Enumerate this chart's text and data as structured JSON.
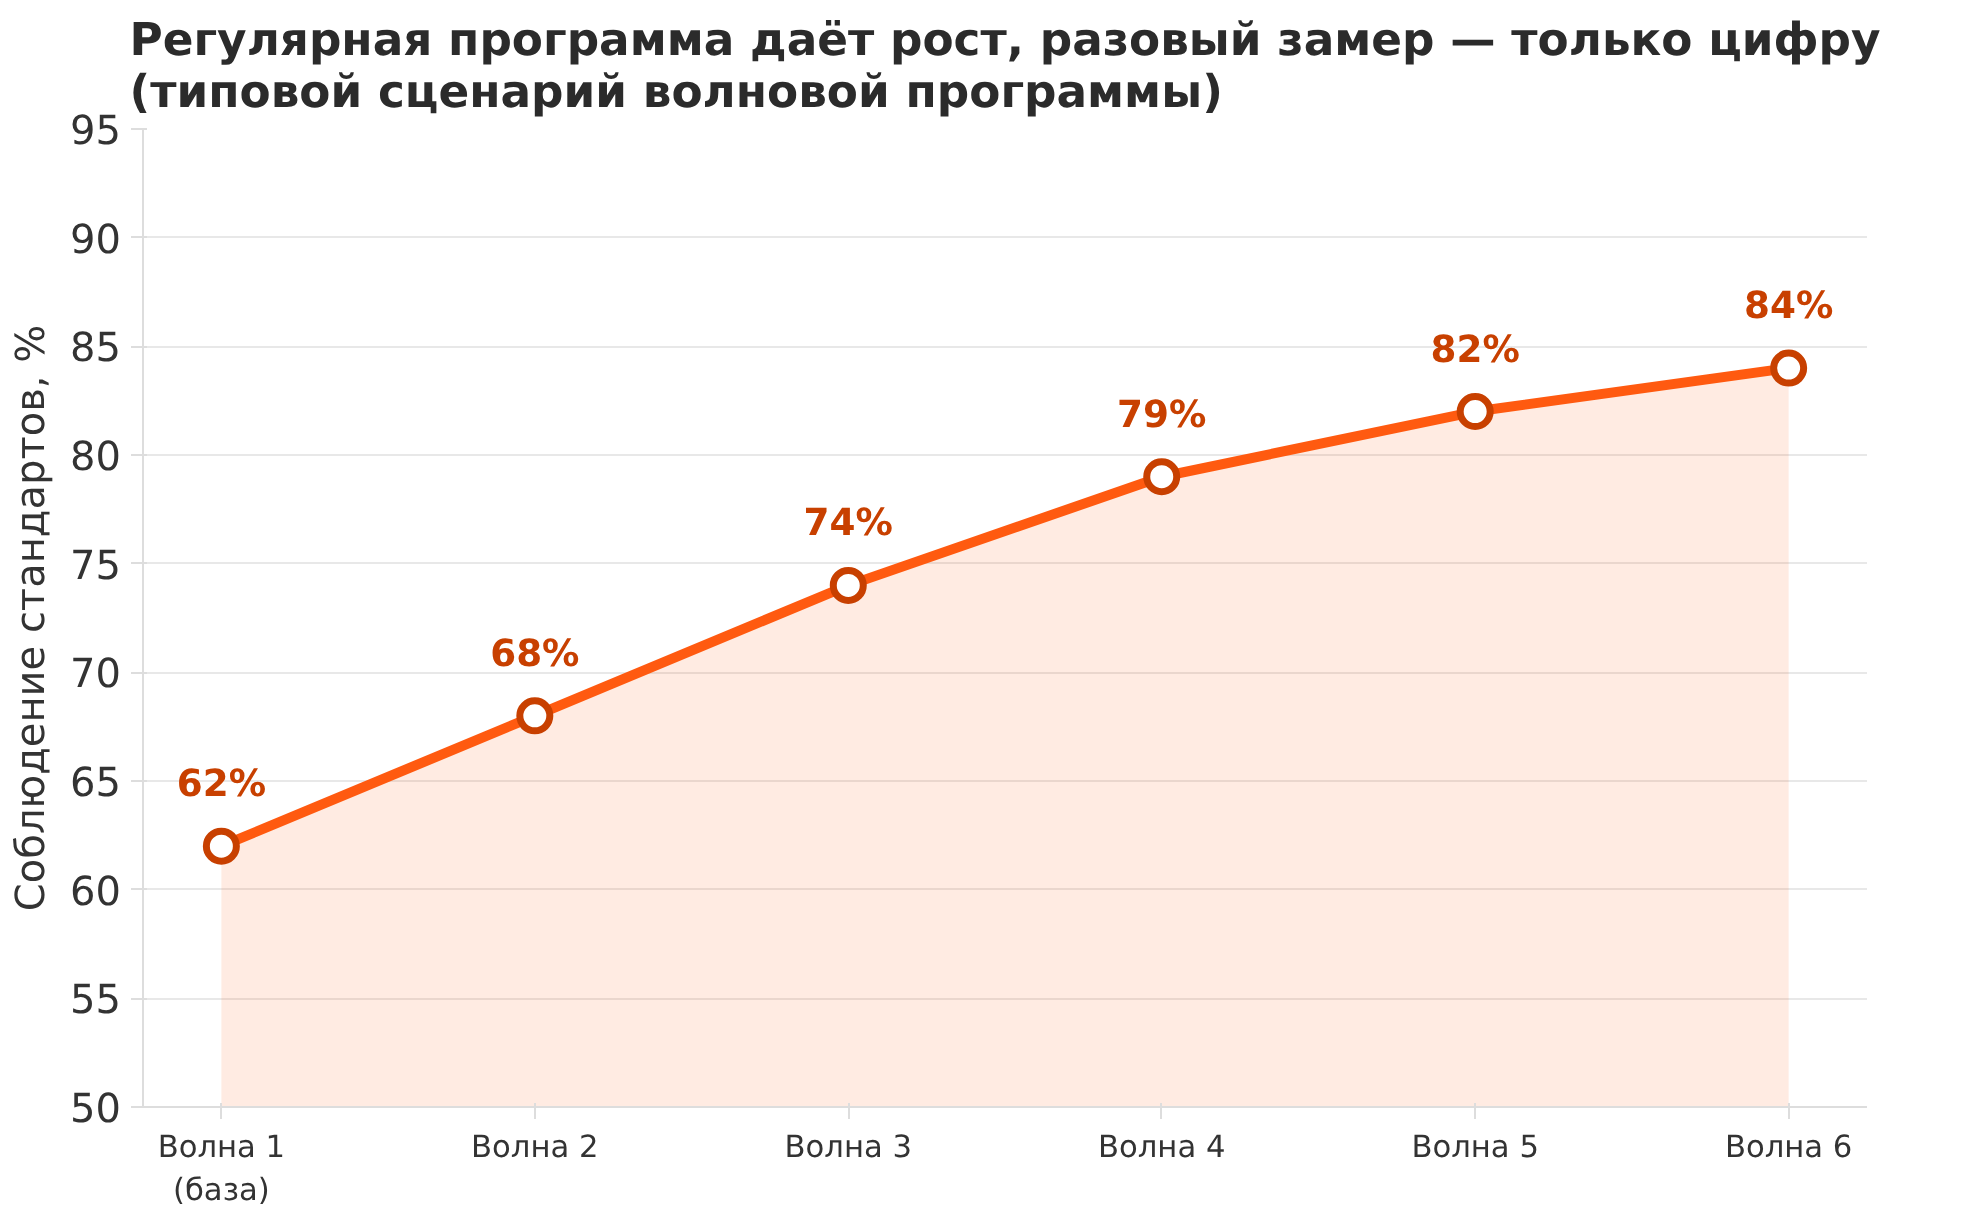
{
  "chart_data": {
    "type": "area",
    "title": "Регулярная программа даёт рост, разовый замер — только цифру\n(типовой сценарий волновой программы)",
    "ylabel": "Соблюдение стандартов, %",
    "categories": [
      "Волна 1\n(база)",
      "Волна 2",
      "Волна 3",
      "Волна 4",
      "Волна 5",
      "Волна 6"
    ],
    "series": [
      {
        "color": "#ff5a10",
        "values": [
          62,
          68,
          74,
          79,
          82,
          84
        ],
        "value_labels": [
          "62%",
          "68%",
          "74%",
          "79%",
          "82%",
          "84%"
        ]
      }
    ],
    "ylim": [
      50,
      95
    ],
    "yticks": [
      50,
      55,
      60,
      65,
      70,
      75,
      80,
      85,
      90,
      95
    ],
    "grid": "y",
    "marker": "circle",
    "line_style": "solid"
  }
}
